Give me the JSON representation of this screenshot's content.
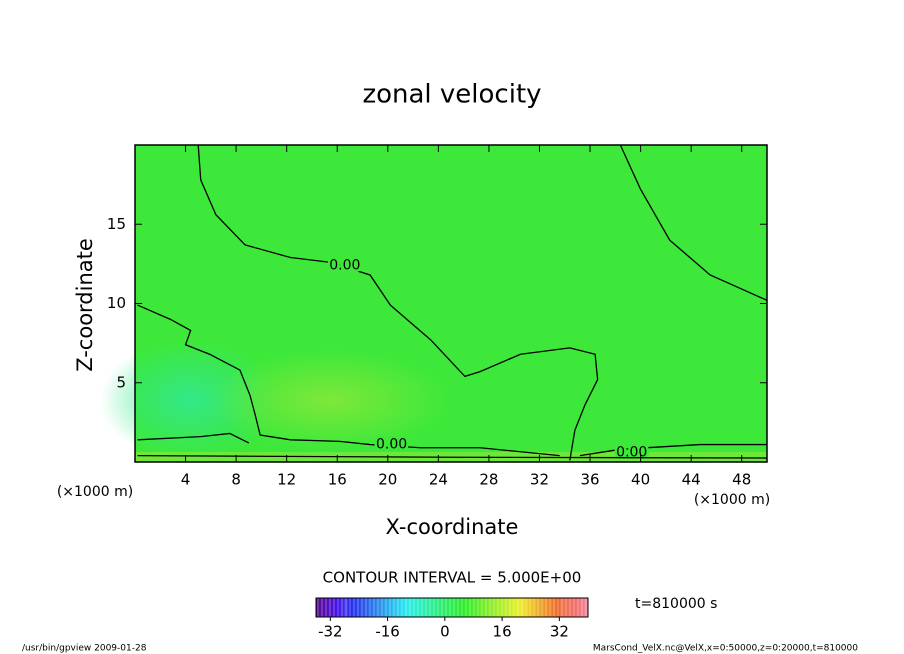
{
  "chart_data": {
    "type": "contour",
    "title": "zonal velocity",
    "xlabel": "X-coordinate",
    "ylabel": "Z-coordinate",
    "x_unit": "(×1000 m)",
    "xlim": [
      0,
      50
    ],
    "ylim": [
      0,
      20
    ],
    "xticks": [
      4,
      8,
      12,
      16,
      20,
      24,
      28,
      32,
      36,
      40,
      44,
      48
    ],
    "yticks": [
      5,
      10,
      15
    ],
    "contours": [
      {
        "level": 0,
        "label": "0.00",
        "label_x": 16.6,
        "label_y": 12.4,
        "x": [
          5.0,
          5.2,
          6.4,
          8.7,
          12.3,
          15.4,
          18.6,
          20.2,
          23.4,
          26.1,
          27.3,
          30.5,
          34.4,
          36.4,
          36.6,
          35.6,
          34.8,
          34.4
        ],
        "y": [
          20.0,
          17.8,
          15.6,
          13.7,
          12.9,
          12.6,
          11.8,
          9.9,
          7.7,
          5.4,
          5.7,
          6.8,
          7.2,
          6.8,
          5.2,
          3.6,
          2.0,
          0.1
        ]
      },
      {
        "level": 0,
        "x": [
          38.4,
          40.0,
          42.3,
          45.5,
          50.0
        ],
        "y": [
          20.0,
          17.2,
          14.0,
          11.8,
          10.2
        ]
      },
      {
        "level": 0,
        "label": "0.00",
        "label_x": 20.3,
        "label_y": 1.1,
        "x": [
          0.2,
          2.8,
          4.4,
          4.0,
          5.9,
          8.3,
          9.1,
          9.5,
          9.9,
          12.3,
          16.2,
          18.6,
          22.6,
          27.3,
          33.6
        ],
        "y": [
          9.9,
          9.0,
          8.3,
          7.4,
          6.8,
          5.8,
          4.2,
          3.0,
          1.7,
          1.4,
          1.3,
          1.1,
          0.9,
          0.9,
          0.4
        ]
      },
      {
        "level": 0,
        "x": [
          0.2,
          5.2,
          7.5,
          9.0
        ],
        "y": [
          1.4,
          1.6,
          1.8,
          1.2
        ]
      },
      {
        "level": 0,
        "label": "0.00",
        "label_x": 39.3,
        "label_y": 0.6,
        "x": [
          35.2,
          38.4,
          44.7,
          50.0
        ],
        "y": [
          0.4,
          0.8,
          1.1,
          1.1
        ]
      },
      {
        "level": 0,
        "x": [
          0.2,
          25.0,
          50.0
        ],
        "y": [
          0.4,
          0.3,
          0.25
        ]
      }
    ],
    "colorbar": {
      "title": "CONTOUR INTERVAL = 5.000E+00",
      "lim": [
        -36,
        40
      ],
      "ticks": [
        -32,
        -16,
        0,
        16,
        32
      ]
    },
    "time_label": "t=810000 s",
    "footer_left": "/usr/bin/gpview  2009-01-28",
    "footer_right": "MarsCond_VelX.nc@VelX,x=0:50000,z=0:20000,t=810000"
  }
}
